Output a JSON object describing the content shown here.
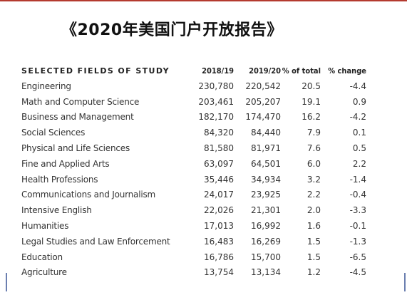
{
  "slide": {
    "title": "《2020年美国门户开放报告》"
  },
  "table": {
    "headers": {
      "field": "SELECTED FIELDS OF STUDY",
      "year1": "2018/19",
      "year2": "2019/20",
      "pct_total": "% of total",
      "pct_change": "% change"
    },
    "rows": [
      {
        "field": "Engineering",
        "y1": "230,780",
        "y2": "220,542",
        "pct": "20.5",
        "chg": "-4.4"
      },
      {
        "field": "Math and Computer Science",
        "y1": "203,461",
        "y2": "205,207",
        "pct": "19.1",
        "chg": "0.9"
      },
      {
        "field": "Business and Management",
        "y1": "182,170",
        "y2": "174,470",
        "pct": "16.2",
        "chg": "-4.2"
      },
      {
        "field": "Social Sciences",
        "y1": "84,320",
        "y2": "84,440",
        "pct": "7.9",
        "chg": "0.1"
      },
      {
        "field": "Physical and Life Sciences",
        "y1": "81,580",
        "y2": "81,971",
        "pct": "7.6",
        "chg": "0.5"
      },
      {
        "field": "Fine and Applied Arts",
        "y1": "63,097",
        "y2": "64,501",
        "pct": "6.0",
        "chg": "2.2"
      },
      {
        "field": "Health Professions",
        "y1": "35,446",
        "y2": "34,934",
        "pct": "3.2",
        "chg": "-1.4"
      },
      {
        "field": "Communications and Journalism",
        "y1": "24,017",
        "y2": "23,925",
        "pct": "2.2",
        "chg": "-0.4"
      },
      {
        "field": "Intensive English",
        "y1": "22,026",
        "y2": "21,301",
        "pct": "2.0",
        "chg": "-3.3"
      },
      {
        "field": "Humanities",
        "y1": "17,013",
        "y2": "16,992",
        "pct": "1.6",
        "chg": "-0.1"
      },
      {
        "field": "Legal Studies and Law Enforcement",
        "y1": "16,483",
        "y2": "16,269",
        "pct": "1.5",
        "chg": "-1.3"
      },
      {
        "field": "Education",
        "y1": "16,786",
        "y2": "15,700",
        "pct": "1.5",
        "chg": "-6.5"
      },
      {
        "field": "Agriculture",
        "y1": "13,754",
        "y2": "13,134",
        "pct": "1.2",
        "chg": "-4.5"
      }
    ]
  },
  "colors": {
    "accent_rule": "#b43a2f",
    "text": "#333333",
    "side_marks": "#6b7fb0"
  }
}
